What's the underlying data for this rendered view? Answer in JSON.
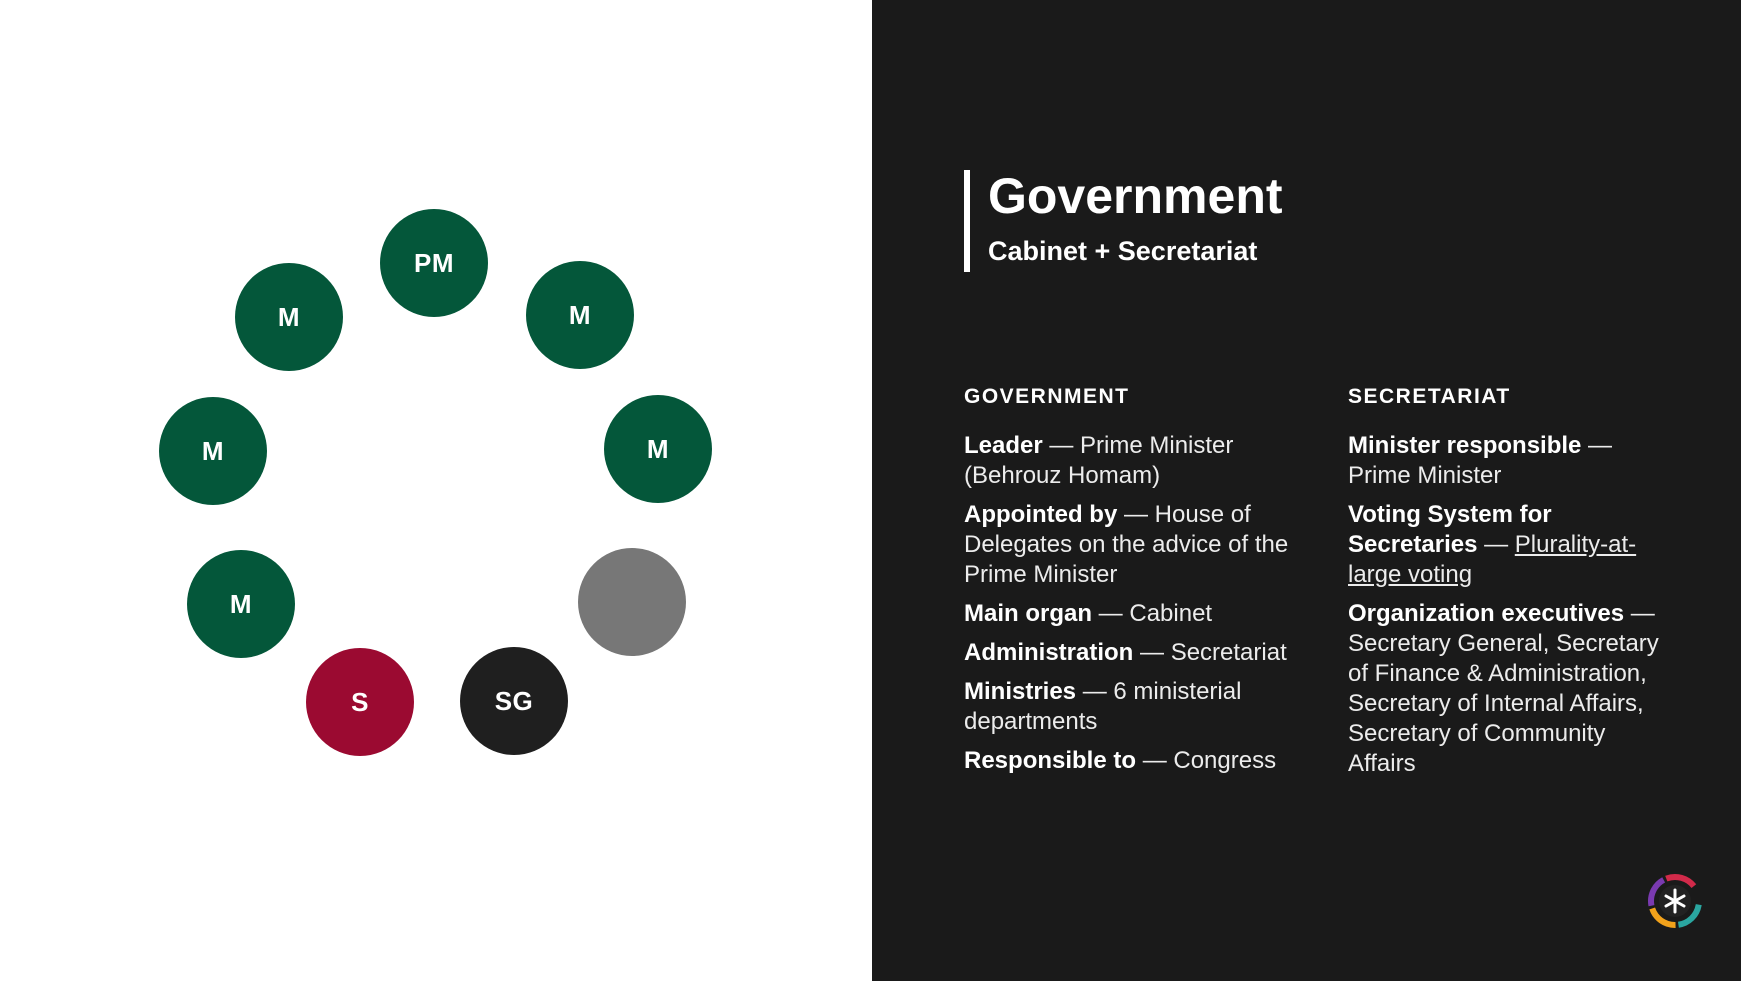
{
  "diagram": {
    "seats": [
      {
        "label": "PM",
        "color": "#04573a"
      },
      {
        "label": "M",
        "color": "#04573a"
      },
      {
        "label": "M",
        "color": "#04573a"
      },
      {
        "label": "",
        "color": "#777777"
      },
      {
        "label": "SG",
        "color": "#1f1f1f"
      },
      {
        "label": "S",
        "color": "#9b0a31"
      },
      {
        "label": "M",
        "color": "#04573a"
      },
      {
        "label": "M",
        "color": "#04573a"
      },
      {
        "label": "M",
        "color": "#04573a"
      }
    ]
  },
  "header": {
    "title": "Government",
    "subtitle": "Cabinet + Secretariat"
  },
  "government": {
    "heading": "GOVERNMENT",
    "entries": [
      {
        "key": "Leader",
        "sep": " — ",
        "value": "Prime Minister (Behrouz Homam)"
      },
      {
        "key": "Appointed by",
        "sep": " — ",
        "value": "House of Delegates on the advice of the Prime Minister"
      },
      {
        "key": "Main organ",
        "sep": " — ",
        "value": "Cabinet"
      },
      {
        "key": "Administration",
        "sep": " — ",
        "value": "Secretariat"
      },
      {
        "key": "Ministries",
        "sep": " —  ",
        "value": "6 ministerial departments"
      },
      {
        "key": "Responsible to",
        "sep": " — ",
        "value": "Congress"
      }
    ]
  },
  "secretariat": {
    "heading": "SECRETARIAT",
    "entries": [
      {
        "key": "Minister responsible",
        "sep": " — ",
        "value": "Prime Minister"
      },
      {
        "key": "Voting System for Secretaries",
        "sep": " — ",
        "value": "Plurality-at-large voting",
        "link": true
      },
      {
        "key": "Organization executives",
        "sep": " — ",
        "value": "Secretary General, Secretary of Finance & Administration, Secretary of Internal Affairs, Secretary of Community Affairs"
      }
    ]
  },
  "colors": {
    "minister": "#04573a",
    "secretary": "#9b0a31",
    "secretary_general": "#1f1f1f",
    "vacant": "#777777",
    "panel": "#1a1a1a"
  },
  "logo": {
    "icon": "organization-logo-icon"
  }
}
